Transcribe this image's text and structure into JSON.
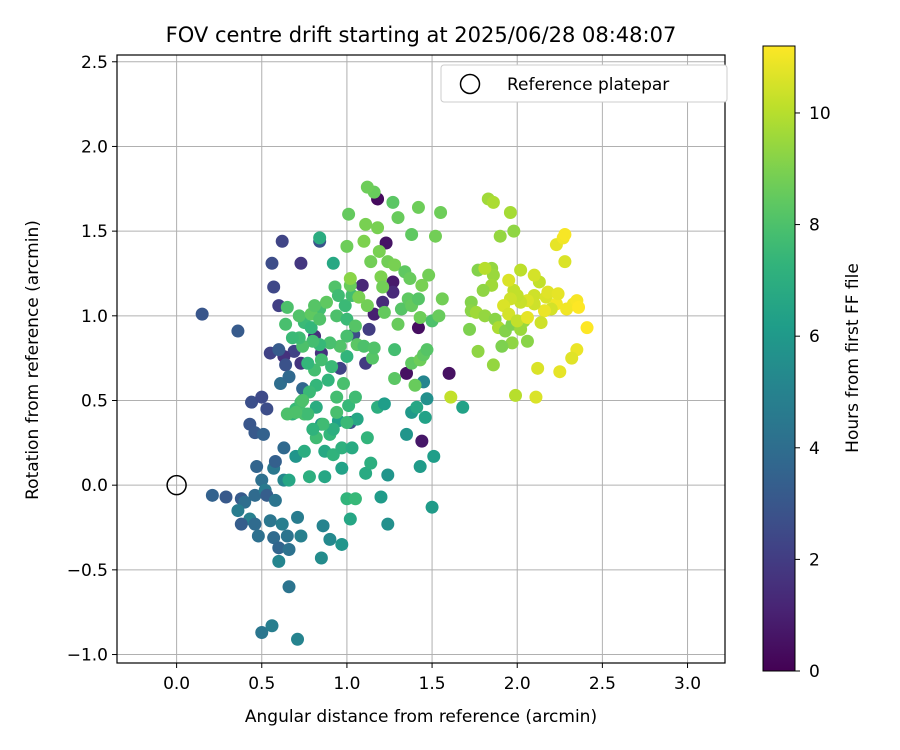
{
  "chart_data": {
    "type": "scatter",
    "title": "FOV centre drift starting at 2025/06/28 08:48:07",
    "xlabel": "Angular distance from reference (arcmin)",
    "ylabel": "Rotation from reference (arcmin)",
    "xlim": [
      -0.35,
      3.22
    ],
    "ylim": [
      -1.05,
      2.54
    ],
    "xticks": [
      "0.0",
      "0.5",
      "1.0",
      "1.5",
      "2.0",
      "2.5",
      "3.0"
    ],
    "xtick_values": [
      0.0,
      0.5,
      1.0,
      1.5,
      2.0,
      2.5,
      3.0
    ],
    "yticks": [
      "−1.0",
      "−0.5",
      "0.0",
      "0.5",
      "1.0",
      "1.5",
      "2.0",
      "2.5"
    ],
    "ytick_values": [
      -1.0,
      -0.5,
      0.0,
      0.5,
      1.0,
      1.5,
      2.0,
      2.5
    ],
    "grid": true,
    "legend": {
      "position": "top-right",
      "entries": [
        "Reference platepar"
      ]
    },
    "reference": {
      "x": 0.0,
      "y": 0.0,
      "label": "Reference platepar"
    },
    "colorbar": {
      "label": "Hours from first FF file",
      "colormap": "viridis",
      "range": [
        0,
        11.2
      ],
      "ticks": [
        "0",
        "2",
        "4",
        "6",
        "8",
        "10"
      ],
      "tick_values": [
        0,
        2,
        4,
        6,
        8,
        10
      ]
    },
    "points": [
      [
        1.18,
        1.69,
        0.3
      ],
      [
        1.23,
        1.43,
        0.6
      ],
      [
        1.42,
        0.93,
        0.4
      ],
      [
        1.35,
        0.66,
        0.5
      ],
      [
        1.44,
        0.26,
        0.7
      ],
      [
        1.6,
        0.66,
        0.5
      ],
      [
        1.27,
        1.2,
        0.8
      ],
      [
        0.15,
        1.01,
        3.0
      ],
      [
        0.36,
        0.91,
        3.2
      ],
      [
        0.62,
        1.44,
        2.3
      ],
      [
        0.56,
        1.31,
        2.6
      ],
      [
        0.57,
        1.17,
        2.4
      ],
      [
        0.6,
        1.06,
        2.1
      ],
      [
        0.73,
        1.31,
        1.8
      ],
      [
        0.84,
        1.44,
        2.9
      ],
      [
        0.69,
        0.79,
        2.2
      ],
      [
        0.63,
        0.76,
        1.6
      ],
      [
        0.55,
        0.78,
        2.2
      ],
      [
        0.73,
        0.72,
        1.7
      ],
      [
        0.44,
        0.49,
        2.7
      ],
      [
        0.5,
        0.52,
        2.5
      ],
      [
        0.53,
        0.45,
        2.6
      ],
      [
        0.43,
        0.36,
        3.0
      ],
      [
        0.46,
        0.31,
        3.1
      ],
      [
        0.51,
        0.3,
        3.5
      ],
      [
        0.81,
        0.88,
        1.5
      ],
      [
        0.85,
        0.78,
        1.6
      ],
      [
        0.96,
        0.69,
        2.2
      ],
      [
        1.09,
        1.18,
        1.2
      ],
      [
        1.16,
        1.01,
        1.0
      ],
      [
        1.21,
        1.08,
        1.4
      ],
      [
        1.27,
        1.14,
        1.3
      ],
      [
        1.04,
        0.89,
        2.6
      ],
      [
        1.11,
        0.72,
        1.9
      ],
      [
        1.02,
        0.37,
        2.8
      ],
      [
        1.13,
        0.92,
        2.0
      ],
      [
        0.6,
        0.8,
        3.2
      ],
      [
        0.64,
        0.71,
        2.8
      ],
      [
        0.61,
        0.6,
        4.0
      ],
      [
        0.66,
        0.64,
        3.8
      ],
      [
        0.74,
        0.57,
        3.7
      ],
      [
        0.63,
        0.22,
        3.8
      ],
      [
        0.47,
        0.11,
        3.6
      ],
      [
        0.57,
        0.1,
        4.5
      ],
      [
        0.58,
        0.14,
        3.4
      ],
      [
        0.5,
        0.03,
        4.1
      ],
      [
        0.21,
        -0.06,
        3.5
      ],
      [
        0.29,
        -0.07,
        3.1
      ],
      [
        0.38,
        -0.08,
        3.2
      ],
      [
        0.46,
        -0.06,
        3.9
      ],
      [
        0.52,
        -0.03,
        4.6
      ],
      [
        0.53,
        -0.06,
        3.3
      ],
      [
        0.58,
        -0.09,
        4.3
      ],
      [
        0.4,
        -0.1,
        4.0
      ],
      [
        0.36,
        -0.15,
        4.7
      ],
      [
        0.43,
        -0.2,
        4.9
      ],
      [
        0.38,
        -0.23,
        3.3
      ],
      [
        0.46,
        -0.23,
        3.9
      ],
      [
        0.48,
        -0.3,
        4.1
      ],
      [
        0.55,
        -0.21,
        4.4
      ],
      [
        0.57,
        -0.31,
        3.9
      ],
      [
        0.62,
        -0.23,
        4.8
      ],
      [
        0.65,
        -0.3,
        4.3
      ],
      [
        0.6,
        -0.37,
        3.6
      ],
      [
        0.66,
        -0.38,
        4.2
      ],
      [
        0.6,
        -0.45,
        5.1
      ],
      [
        0.73,
        -0.3,
        4.9
      ],
      [
        0.66,
        -0.6,
        4.3
      ],
      [
        0.5,
        -0.87,
        4.4
      ],
      [
        0.56,
        -0.83,
        4.8
      ],
      [
        0.71,
        -0.91,
        5.0
      ],
      [
        0.71,
        -0.19,
        4.7
      ],
      [
        0.63,
        0.03,
        5.2
      ],
      [
        0.86,
        -0.24,
        5.0
      ],
      [
        0.85,
        -0.43,
        5.4
      ],
      [
        0.9,
        -0.32,
        5.3
      ],
      [
        0.97,
        -0.35,
        5.8
      ],
      [
        1.02,
        -0.2,
        6.6
      ],
      [
        1.0,
        -0.08,
        7.3
      ],
      [
        1.05,
        -0.08,
        7.5
      ],
      [
        1.2,
        -0.07,
        6.1
      ],
      [
        1.24,
        -0.23,
        5.6
      ],
      [
        1.5,
        -0.13,
        6.1
      ],
      [
        1.51,
        0.17,
        6.2
      ],
      [
        1.43,
        0.11,
        6.1
      ],
      [
        1.35,
        0.3,
        5.8
      ],
      [
        1.38,
        0.43,
        6.0
      ],
      [
        1.41,
        0.46,
        6.6
      ],
      [
        1.46,
        0.4,
        6.4
      ],
      [
        1.47,
        0.51,
        5.6
      ],
      [
        1.45,
        0.61,
        5.1
      ],
      [
        1.68,
        0.46,
        6.4
      ],
      [
        1.24,
        0.06,
        5.8
      ],
      [
        1.11,
        0.07,
        6.8
      ],
      [
        0.97,
        0.1,
        6.4
      ],
      [
        0.87,
        0.05,
        6.6
      ],
      [
        0.78,
        0.05,
        7.0
      ],
      [
        0.66,
        0.03,
        6.6
      ],
      [
        0.7,
        0.17,
        5.8
      ],
      [
        0.75,
        0.2,
        6.9
      ],
      [
        0.87,
        0.2,
        6.7
      ],
      [
        0.92,
        0.18,
        7.2
      ],
      [
        0.97,
        0.22,
        7.1
      ],
      [
        1.03,
        0.22,
        6.8
      ],
      [
        1.12,
        0.28,
        7.3
      ],
      [
        1.14,
        0.13,
        7.0
      ],
      [
        1.18,
        0.46,
        7.0
      ],
      [
        1.22,
        0.48,
        6.2
      ],
      [
        0.85,
        0.36,
        5.9
      ],
      [
        0.95,
        0.38,
        6.3
      ],
      [
        1.06,
        0.39,
        6.6
      ],
      [
        0.82,
        0.46,
        6.9
      ],
      [
        0.7,
        0.45,
        7.5
      ],
      [
        0.73,
        0.49,
        7.8
      ],
      [
        0.68,
        0.42,
        7.2
      ],
      [
        0.75,
        0.42,
        7.9
      ],
      [
        0.82,
        0.28,
        7.7
      ],
      [
        0.9,
        0.3,
        7.4
      ],
      [
        0.92,
        0.33,
        7.0
      ],
      [
        1.0,
        0.37,
        7.6
      ],
      [
        0.94,
        0.52,
        7.8
      ],
      [
        0.82,
        0.59,
        7.4
      ],
      [
        0.78,
        0.55,
        7.6
      ],
      [
        0.89,
        0.62,
        7.3
      ],
      [
        0.81,
        0.68,
        7.8
      ],
      [
        0.77,
        0.72,
        7.4
      ],
      [
        0.85,
        0.74,
        7.8
      ],
      [
        0.91,
        0.7,
        7.6
      ],
      [
        1.0,
        0.76,
        7.3
      ],
      [
        0.98,
        0.6,
        7.9
      ],
      [
        1.01,
        0.47,
        7.5
      ],
      [
        1.05,
        0.52,
        7.7
      ],
      [
        0.94,
        0.43,
        7.9
      ],
      [
        0.86,
        0.36,
        7.7
      ],
      [
        0.8,
        0.33,
        7.2
      ],
      [
        0.77,
        0.42,
        7.7
      ],
      [
        0.74,
        0.5,
        8.0
      ],
      [
        0.7,
        0.43,
        8.0
      ],
      [
        0.65,
        0.42,
        8.0
      ],
      [
        0.75,
        0.96,
        7.6
      ],
      [
        0.79,
        0.93,
        7.4
      ],
      [
        0.84,
        1.04,
        7.8
      ],
      [
        0.88,
        1.08,
        8.4
      ],
      [
        0.93,
        1.17,
        8.1
      ],
      [
        0.95,
        1.12,
        7.7
      ],
      [
        0.99,
        1.06,
        7.6
      ],
      [
        1.03,
        1.12,
        7.8
      ],
      [
        0.92,
        1.31,
        6.7
      ],
      [
        0.84,
        1.46,
        6.9
      ],
      [
        0.94,
        1.0,
        8.0
      ],
      [
        1.0,
        0.98,
        7.6
      ],
      [
        1.05,
        0.94,
        8.2
      ],
      [
        1.0,
        0.88,
        7.9
      ],
      [
        0.96,
        0.82,
        8.1
      ],
      [
        0.9,
        0.84,
        7.9
      ],
      [
        0.84,
        0.83,
        7.5
      ],
      [
        0.8,
        0.85,
        7.8
      ],
      [
        0.74,
        0.82,
        8.0
      ],
      [
        0.72,
        0.87,
        7.7
      ],
      [
        0.68,
        0.87,
        7.6
      ],
      [
        0.64,
        0.95,
        7.9
      ],
      [
        0.65,
        1.05,
        8.0
      ],
      [
        0.72,
        1.0,
        8.1
      ],
      [
        0.79,
        1.01,
        8.4
      ],
      [
        0.81,
        1.06,
        8.2
      ],
      [
        0.84,
        0.98,
        8.1
      ],
      [
        1.06,
        0.83,
        8.3
      ],
      [
        1.1,
        0.82,
        8.0
      ],
      [
        1.15,
        0.75,
        8.2
      ],
      [
        1.16,
        0.81,
        8.1
      ],
      [
        1.28,
        0.8,
        7.8
      ],
      [
        1.28,
        0.63,
        8.3
      ],
      [
        1.38,
        0.72,
        8.4
      ],
      [
        1.4,
        0.59,
        8.6
      ],
      [
        1.43,
        0.74,
        8.7
      ],
      [
        1.45,
        0.77,
        8.4
      ],
      [
        1.47,
        0.8,
        8.2
      ],
      [
        1.3,
        0.95,
        8.6
      ],
      [
        1.32,
        1.04,
        8.2
      ],
      [
        1.36,
        1.1,
        8.4
      ],
      [
        1.38,
        1.06,
        8.5
      ],
      [
        1.42,
        1.1,
        8.2
      ],
      [
        1.43,
        0.99,
        8.7
      ],
      [
        1.5,
        0.97,
        8.0
      ],
      [
        1.54,
        1.0,
        8.6
      ],
      [
        1.56,
        1.1,
        8.8
      ],
      [
        1.44,
        1.18,
        8.9
      ],
      [
        1.48,
        1.24,
        8.8
      ],
      [
        1.52,
        1.47,
        8.8
      ],
      [
        1.55,
        1.61,
        8.7
      ],
      [
        1.42,
        1.64,
        8.7
      ],
      [
        1.38,
        1.48,
        8.4
      ],
      [
        1.3,
        1.58,
        8.6
      ],
      [
        1.27,
        1.67,
        8.3
      ],
      [
        1.16,
        1.73,
        8.6
      ],
      [
        1.12,
        1.76,
        8.7
      ],
      [
        1.11,
        1.54,
        8.9
      ],
      [
        1.18,
        1.52,
        8.9
      ],
      [
        1.19,
        1.38,
        8.9
      ],
      [
        1.14,
        1.32,
        8.8
      ],
      [
        1.24,
        1.32,
        8.8
      ],
      [
        1.28,
        1.3,
        8.9
      ],
      [
        1.34,
        1.26,
        8.4
      ],
      [
        1.37,
        1.22,
        8.6
      ],
      [
        1.2,
        1.23,
        9.0
      ],
      [
        1.21,
        1.17,
        8.8
      ],
      [
        1.22,
        1.02,
        8.5
      ],
      [
        1.12,
        1.06,
        8.8
      ],
      [
        1.07,
        1.11,
        8.9
      ],
      [
        1.02,
        1.18,
        8.6
      ],
      [
        1.02,
        1.22,
        9.2
      ],
      [
        1.0,
        1.41,
        8.7
      ],
      [
        1.01,
        1.6,
        8.5
      ],
      [
        1.1,
        1.44,
        9.0
      ],
      [
        1.83,
        1.69,
        9.6
      ],
      [
        1.86,
        1.67,
        9.8
      ],
      [
        1.96,
        1.61,
        9.7
      ],
      [
        1.9,
        1.47,
        9.4
      ],
      [
        1.98,
        1.5,
        9.3
      ],
      [
        1.85,
        1.28,
        9.4
      ],
      [
        1.86,
        1.24,
        9.5
      ],
      [
        1.85,
        1.18,
        9.6
      ],
      [
        1.77,
        1.27,
        9.1
      ],
      [
        1.8,
        1.15,
        9.3
      ],
      [
        1.73,
        1.08,
        9.1
      ],
      [
        1.73,
        1.03,
        9.2
      ],
      [
        1.76,
        1.02,
        9.6
      ],
      [
        1.81,
        1.0,
        9.4
      ],
      [
        1.87,
        0.98,
        9.2
      ],
      [
        1.89,
        0.93,
        9.8
      ],
      [
        1.93,
        0.91,
        9.1
      ],
      [
        1.97,
        0.95,
        9.0
      ],
      [
        2.02,
        0.92,
        9.5
      ],
      [
        2.04,
        0.97,
        9.5
      ],
      [
        2.06,
        0.85,
        9.2
      ],
      [
        1.97,
        0.84,
        9.3
      ],
      [
        1.91,
        0.82,
        9.0
      ],
      [
        1.86,
        0.71,
        9.4
      ],
      [
        1.77,
        0.79,
        9.3
      ],
      [
        1.72,
        0.92,
        9.0
      ],
      [
        1.99,
        0.53,
        10.0
      ],
      [
        2.11,
        0.52,
        10.6
      ],
      [
        1.61,
        0.52,
        10.2
      ],
      [
        2.13,
        1.2,
        10.2
      ],
      [
        2.1,
        1.24,
        10.5
      ],
      [
        2.1,
        1.12,
        10.4
      ],
      [
        2.17,
        1.11,
        10.6
      ],
      [
        2.18,
        1.14,
        10.7
      ],
      [
        2.23,
        1.07,
        11.0
      ],
      [
        2.24,
        1.13,
        10.8
      ],
      [
        2.2,
        1.04,
        10.5
      ],
      [
        2.16,
        1.03,
        10.9
      ],
      [
        2.1,
        1.07,
        10.4
      ],
      [
        2.06,
        1.09,
        10.6
      ],
      [
        2.02,
        1.08,
        10.3
      ],
      [
        2.0,
        1.12,
        10.2
      ],
      [
        1.98,
        1.15,
        10.2
      ],
      [
        1.96,
        1.1,
        10.4
      ],
      [
        1.92,
        1.06,
        10.6
      ],
      [
        1.95,
        1.01,
        10.5
      ],
      [
        2.0,
        0.97,
        10.2
      ],
      [
        2.06,
        0.99,
        10.8
      ],
      [
        2.14,
        0.96,
        10.4
      ],
      [
        2.23,
        1.42,
        10.8
      ],
      [
        2.27,
        1.46,
        11.0
      ],
      [
        2.28,
        1.48,
        11.1
      ],
      [
        2.28,
        1.32,
        10.6
      ],
      [
        2.29,
        1.04,
        11.0
      ],
      [
        2.33,
        1.07,
        11.0
      ],
      [
        2.35,
        1.09,
        11.1
      ],
      [
        2.36,
        1.05,
        11.2
      ],
      [
        2.41,
        0.93,
        11.2
      ],
      [
        2.35,
        0.8,
        10.9
      ],
      [
        2.32,
        0.75,
        10.7
      ],
      [
        2.25,
        0.67,
        10.8
      ],
      [
        2.12,
        0.69,
        10.6
      ],
      [
        2.02,
        1.27,
        10.1
      ],
      [
        1.95,
        1.21,
        10.6
      ],
      [
        1.81,
        1.28,
        10.0
      ]
    ]
  }
}
